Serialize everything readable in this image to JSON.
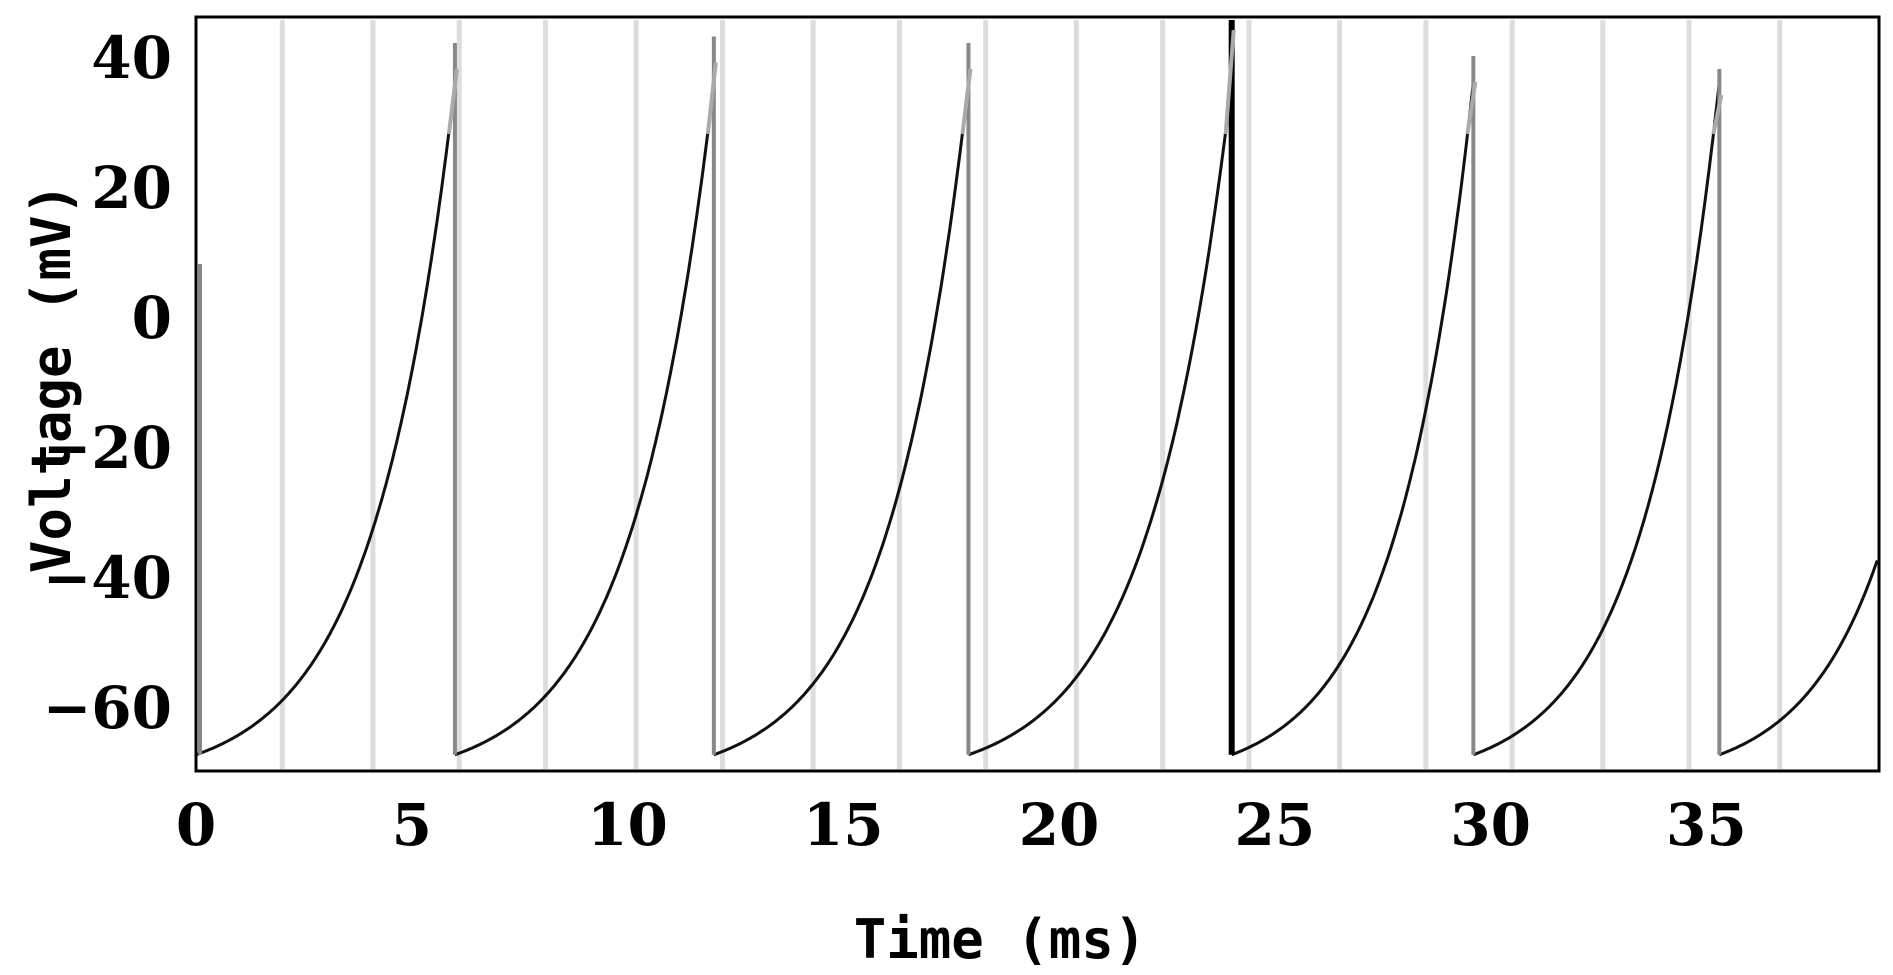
{
  "chart_data": {
    "type": "line",
    "title": "",
    "xlabel": "Time (ms)",
    "ylabel": "Voltage (mV)",
    "xlim": [
      0,
      39
    ],
    "ylim": [
      -70,
      46
    ],
    "x_ticks": [
      0,
      5,
      10,
      15,
      20,
      25,
      30,
      35
    ],
    "y_ticks": [
      -60,
      -40,
      -20,
      0,
      20,
      40
    ],
    "grid": false,
    "colors": {
      "trace": "#111111",
      "spike": "#888888",
      "marker": "#dddddd",
      "highlight": "#000000"
    },
    "spike_times": [
      6.0,
      12.0,
      17.9,
      24.0,
      29.6,
      35.3
    ],
    "spike_peaks": [
      42,
      43,
      42,
      48,
      40,
      38
    ],
    "threshold": 36,
    "reset": -67.5,
    "initial_value": 8,
    "end_value": -42,
    "marker_times": [
      2.0,
      4.1,
      6.1,
      8.1,
      10.2,
      12.2,
      14.3,
      16.3,
      18.3,
      20.4,
      22.4,
      24.4,
      26.5,
      28.5,
      30.5,
      32.6,
      34.6,
      36.7
    ],
    "highlight_time": 24.0
  }
}
